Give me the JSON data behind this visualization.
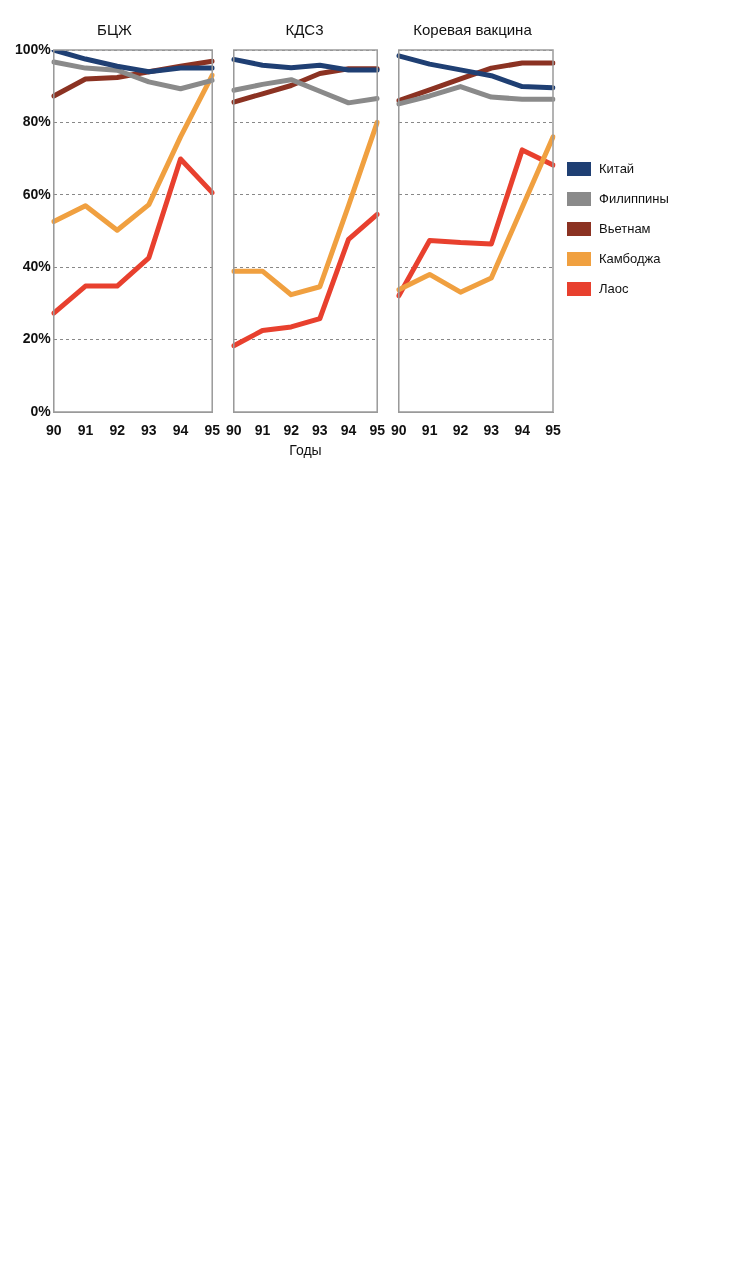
{
  "chart_data": [
    {
      "type": "line",
      "title": "БЦЖ",
      "categories": [
        "90",
        "91",
        "92",
        "93",
        "94",
        "95"
      ],
      "ylim": [
        0,
        100
      ],
      "yticks": [
        {
          "value": 0,
          "label": "0%"
        },
        {
          "value": 20,
          "label": "20%"
        },
        {
          "value": 40,
          "label": "40%"
        },
        {
          "value": 60,
          "label": "60%"
        },
        {
          "value": 80,
          "label": "80%"
        },
        {
          "value": 100,
          "label": "100%"
        }
      ],
      "grid": "y",
      "legend": false,
      "series": [
        {
          "color": "#1f3f73",
          "values": [
            100,
            97.5,
            95.5,
            94,
            95,
            95
          ]
        },
        {
          "color": "#8a8a8a",
          "values": [
            96.7,
            95,
            94.4,
            91.2,
            89.3,
            91.6
          ]
        },
        {
          "color": "#8b3222",
          "values": [
            87.3,
            92,
            92.4,
            94,
            95.5,
            96.9
          ]
        },
        {
          "color": "#f0a040",
          "values": [
            52.6,
            57,
            50.2,
            57.3,
            76,
            93
          ]
        },
        {
          "color": "#e8402e",
          "values": [
            27.3,
            34.8,
            34.8,
            42.6,
            69.9,
            60.6
          ]
        }
      ]
    },
    {
      "type": "line",
      "title": "КДС3",
      "xlabel": "Годы",
      "categories": [
        "90",
        "91",
        "92",
        "93",
        "94",
        "95"
      ],
      "ylim": [
        0,
        100
      ],
      "yticks": [
        0,
        20,
        40,
        60,
        80,
        100
      ],
      "grid": "y",
      "legend": false,
      "tick_labels": "x",
      "series": [
        {
          "color": "#1f3f73",
          "values": [
            97.4,
            95.8,
            95.1,
            95.8,
            94.5,
            94.5
          ]
        },
        {
          "color": "#8a8a8a",
          "values": [
            88.9,
            90.5,
            91.8,
            88.6,
            85.4,
            86.6
          ]
        },
        {
          "color": "#8b3222",
          "values": [
            85.6,
            87.9,
            90.2,
            93.5,
            94.8,
            94.8
          ]
        },
        {
          "color": "#f0a040",
          "values": [
            38.9,
            38.9,
            32.4,
            34.6,
            57,
            80
          ]
        },
        {
          "color": "#e8402e",
          "values": [
            18.3,
            22.5,
            23.5,
            25.8,
            47.7,
            54.6
          ]
        }
      ]
    },
    {
      "type": "line",
      "title": "Коревая вакцина",
      "categories": [
        "90",
        "91",
        "92",
        "93",
        "94",
        "95"
      ],
      "ylim": [
        0,
        100
      ],
      "yticks": [
        0,
        20,
        40,
        60,
        80,
        100
      ],
      "grid": "y",
      "legend": "right",
      "tick_labels": "x",
      "series": [
        {
          "name": "Китай",
          "color": "#1f3f73",
          "values": [
            98.4,
            96.1,
            94.5,
            92.9,
            89.9,
            89.6
          ]
        },
        {
          "name": "Филиппины",
          "color": "#8a8a8a",
          "values": [
            85.1,
            87.3,
            89.9,
            87,
            86.4,
            86.4
          ]
        },
        {
          "name": "Вьетнам",
          "color": "#8b3222",
          "values": [
            86,
            89,
            92,
            95,
            96.4,
            96.4
          ]
        },
        {
          "name": "Камбоджа",
          "color": "#f0a040",
          "values": [
            33.8,
            38,
            33.1,
            37,
            56.5,
            76
          ]
        },
        {
          "name": "Лаос",
          "color": "#e8402e",
          "values": [
            32.1,
            47.4,
            46.8,
            46.4,
            72.4,
            68.2
          ]
        }
      ]
    }
  ]
}
